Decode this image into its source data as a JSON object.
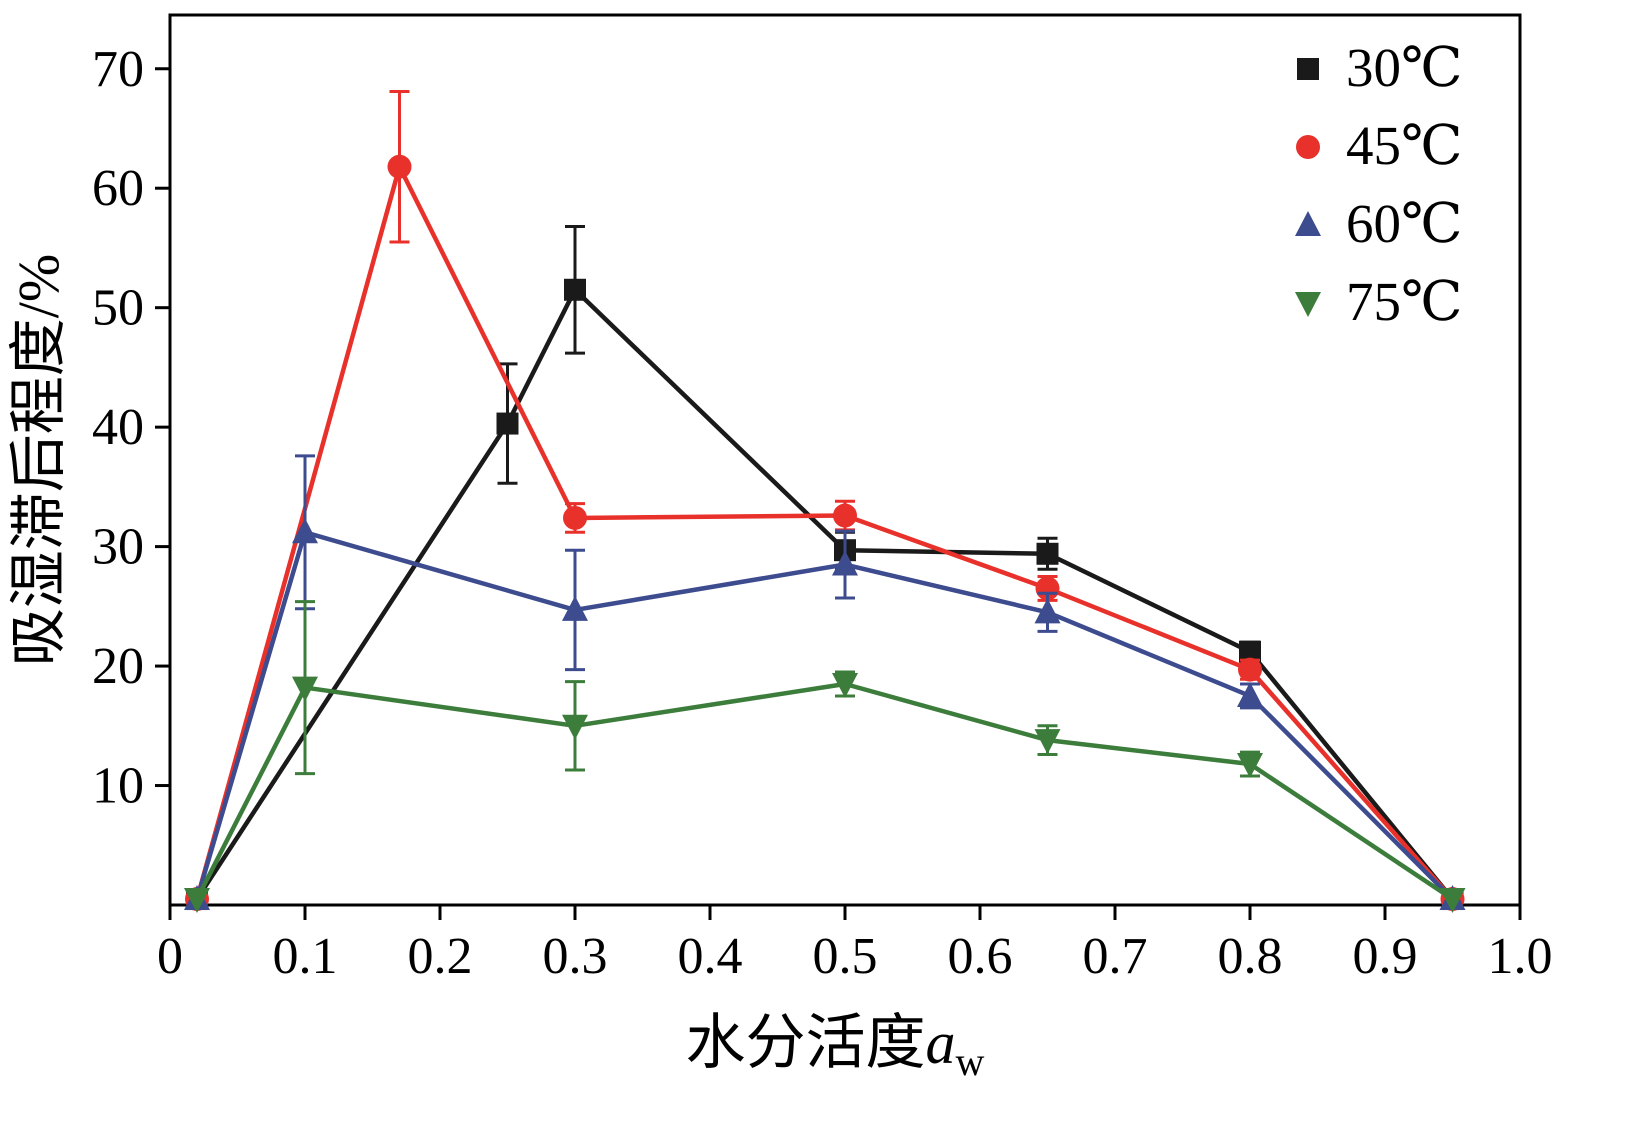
{
  "chart_data": {
    "type": "line",
    "title": "",
    "xlabel_text": "水分活度",
    "xlabel_var": "a",
    "xlabel_sub": "w",
    "ylabel": "吸湿滞后程度/%",
    "xlim": [
      0,
      1.0
    ],
    "ylim": [
      0,
      74.5
    ],
    "xticks": [
      0,
      0.1,
      0.2,
      0.3,
      0.4,
      0.5,
      0.6,
      0.7,
      0.8,
      0.9,
      1.0
    ],
    "yticks": [
      10,
      20,
      30,
      40,
      50,
      60,
      70
    ],
    "grid": false,
    "legend_position": "top-right",
    "frame_color": "#000000",
    "series": [
      {
        "name": "30℃",
        "id": "series-30c",
        "color": "#1a1a1a",
        "marker": "square",
        "points": [
          {
            "x": 0.02,
            "y": 0.5,
            "e": 0
          },
          {
            "x": 0.25,
            "y": 40.3,
            "e": 5.0
          },
          {
            "x": 0.3,
            "y": 51.5,
            "e": 5.3
          },
          {
            "x": 0.5,
            "y": 29.7,
            "e": 1.5
          },
          {
            "x": 0.65,
            "y": 29.4,
            "e": 1.3
          },
          {
            "x": 0.8,
            "y": 21.2,
            "e": 0.8
          },
          {
            "x": 0.95,
            "y": 0.5,
            "e": 0
          }
        ]
      },
      {
        "name": "45℃",
        "id": "series-45c",
        "color": "#e8312a",
        "marker": "circle",
        "points": [
          {
            "x": 0.02,
            "y": 0.5,
            "e": 0
          },
          {
            "x": 0.17,
            "y": 61.8,
            "e": 6.3
          },
          {
            "x": 0.3,
            "y": 32.4,
            "e": 1.2
          },
          {
            "x": 0.5,
            "y": 32.6,
            "e": 1.2
          },
          {
            "x": 0.65,
            "y": 26.5,
            "e": 1.0
          },
          {
            "x": 0.8,
            "y": 19.7,
            "e": 0.8
          },
          {
            "x": 0.95,
            "y": 0.5,
            "e": 0
          }
        ]
      },
      {
        "name": "60℃",
        "id": "series-60c",
        "color": "#3d4b8f",
        "marker": "triangle-up",
        "points": [
          {
            "x": 0.02,
            "y": 0.5,
            "e": 0
          },
          {
            "x": 0.1,
            "y": 31.2,
            "e": 6.4
          },
          {
            "x": 0.3,
            "y": 24.7,
            "e": 5.0
          },
          {
            "x": 0.5,
            "y": 28.5,
            "e": 2.8
          },
          {
            "x": 0.65,
            "y": 24.5,
            "e": 1.6
          },
          {
            "x": 0.8,
            "y": 17.5,
            "e": 1.0
          },
          {
            "x": 0.95,
            "y": 0.5,
            "e": 0
          }
        ]
      },
      {
        "name": "75℃",
        "id": "series-75c",
        "color": "#3c7d3c",
        "marker": "triangle-down",
        "points": [
          {
            "x": 0.02,
            "y": 0.5,
            "e": 0
          },
          {
            "x": 0.1,
            "y": 18.2,
            "e": 7.2
          },
          {
            "x": 0.3,
            "y": 15.0,
            "e": 3.7
          },
          {
            "x": 0.5,
            "y": 18.5,
            "e": 1.0
          },
          {
            "x": 0.65,
            "y": 13.8,
            "e": 1.2
          },
          {
            "x": 0.8,
            "y": 11.8,
            "e": 1.0
          },
          {
            "x": 0.95,
            "y": 0.5,
            "e": 0
          }
        ]
      }
    ]
  }
}
